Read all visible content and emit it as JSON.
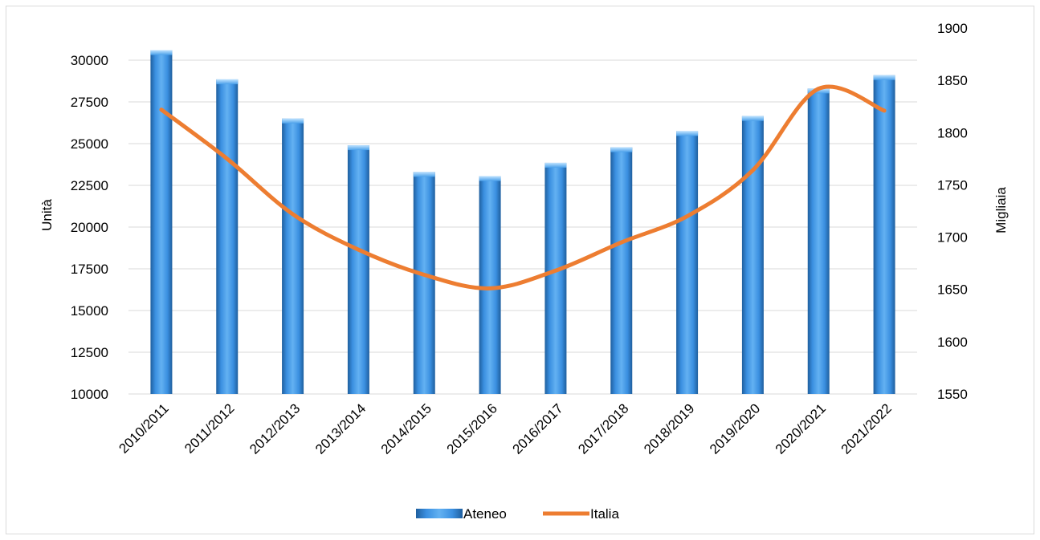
{
  "chart_data": {
    "type": "bar",
    "categories": [
      "2010/2011",
      "2011/2012",
      "2012/2013",
      "2013/2014",
      "2014/2015",
      "2015/2016",
      "2016/2017",
      "2017/2018",
      "2018/2019",
      "2019/2020",
      "2020/2021",
      "2021/2022"
    ],
    "series": [
      {
        "name": "Ateneo",
        "type": "bar",
        "axis": "left",
        "color": "#2f7fd0",
        "values": [
          30600,
          28850,
          26500,
          24900,
          23300,
          23050,
          23850,
          24780,
          25750,
          26650,
          28300,
          29100
        ]
      },
      {
        "name": "Italia",
        "type": "line",
        "axis": "right",
        "color": "#ed7d31",
        "values": [
          1822,
          1775,
          1722,
          1688,
          1664,
          1651,
          1668,
          1695,
          1720,
          1764,
          1842,
          1821
        ]
      }
    ],
    "ylabel_left": "Unità",
    "ylabel_right": "Migliaia",
    "ylim_left": [
      10000,
      30000
    ],
    "ylim_right": [
      1550,
      1900
    ],
    "yticks_left": [
      "10000",
      "12500",
      "15000",
      "17500",
      "20000",
      "22500",
      "25000",
      "27500",
      "30000"
    ],
    "yticks_right": [
      "1550",
      "1600",
      "1650",
      "1700",
      "1750",
      "1800",
      "1850",
      "1900"
    ],
    "grid": true,
    "legend_position": "bottom"
  }
}
